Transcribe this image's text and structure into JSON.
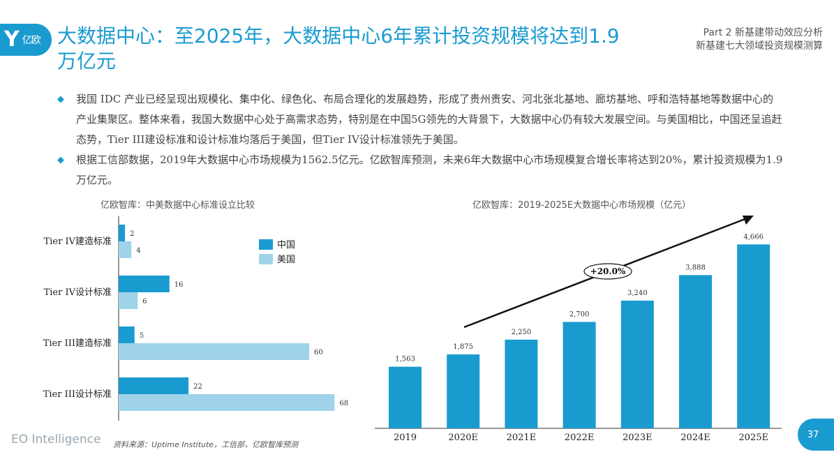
{
  "logo": {
    "mark": "Y",
    "text": "亿欧"
  },
  "title": "大数据中心：至2025年，大数据中心6年累计投资规模将达到1.9万亿元",
  "header": {
    "section": "Part 2 新基建带动效应分析",
    "subsection": "新基建七大领域投资规模测算"
  },
  "bullets": [
    "我国 IDC 产业已经呈现出规模化、集中化、绿色化、布局合理化的发展趋势，形成了贵州贵安、河北张北基地、廊坊基地、呼和浩特基地等数据中心的产业集聚区。整体来看，我国大数据中心处于高需求态势，特别是在中国5G领先的大背景下，大数据中心仍有较大发展空间。与美国相比，中国还呈追赶态势，Tier III建设标准和设计标准均落后于美国，但Tier IV设计标准领先于美国。",
    "根据工信部数据，2019年大数据中心市场规模为1562.5亿元。亿欧智库预测，未来6年大数据中心市场规模复合增长率将达到20%，累计投资规模为1.9万亿元。"
  ],
  "footer": {
    "brand": "EO Intelligence",
    "source": "资料来源：Uptime Institute，工信部，亿欧智库预测",
    "page": "37"
  },
  "colors": {
    "accent": "#1a9bd0",
    "light": "#9fd3ea"
  },
  "chart_data": [
    {
      "type": "bar",
      "orientation": "horizontal",
      "title": "亿欧智库：中美数据中心标准设立比较",
      "categories": [
        "Tier IV建造标准",
        "Tier IV设计标准",
        "Tier III建造标准",
        "Tier III设计标准"
      ],
      "series": [
        {
          "name": "中国",
          "values": [
            2,
            16,
            5,
            22
          ]
        },
        {
          "name": "美国",
          "values": [
            4,
            6,
            60,
            68
          ]
        }
      ],
      "legend": "top-right"
    },
    {
      "type": "bar",
      "title": "亿欧智库：2019-2025E大数据中心市场规模（亿元）",
      "categories": [
        "2019",
        "2020E",
        "2021E",
        "2022E",
        "2023E",
        "2024E",
        "2025E"
      ],
      "values": [
        1563,
        1875,
        2250,
        2700,
        3240,
        3888,
        4666
      ],
      "value_labels": [
        "1,563",
        "1,875",
        "2,250",
        "2,700",
        "3,240",
        "3,888",
        "4,666"
      ],
      "annotation": "+20.0%"
    }
  ]
}
